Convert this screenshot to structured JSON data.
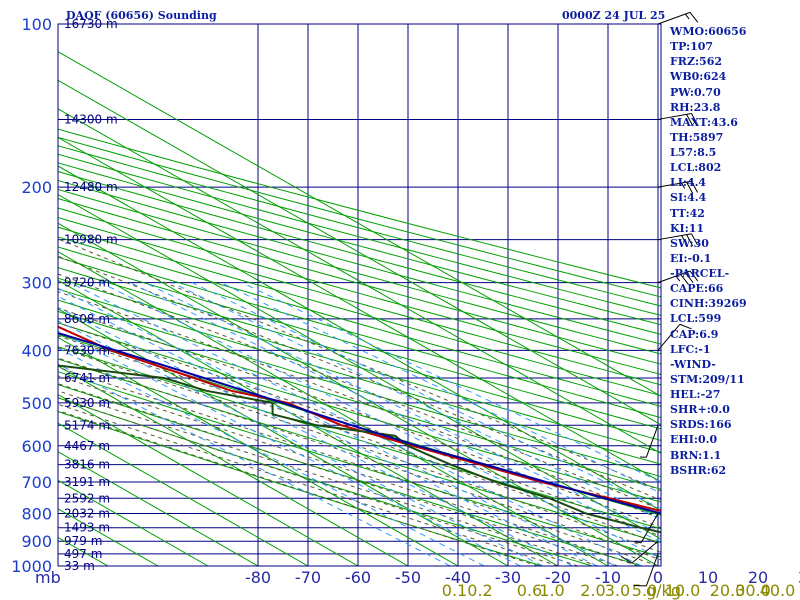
{
  "title": {
    "station": "DAOF (60656) Sounding",
    "time": "0000Z 24 JUL 25"
  },
  "chart_data": {
    "type": "line",
    "title": "DAOF (60656) Sounding",
    "subtitle": "0000Z 24 JUL 25",
    "xlabel": "",
    "ylabel": "mb",
    "ylabel_text": "mb",
    "xlim": [
      -80,
      0
    ],
    "ylim": [
      1000,
      100
    ],
    "pressure_ticks": [
      100,
      200,
      300,
      400,
      500,
      600,
      700,
      800,
      900,
      1000
    ],
    "pressure_tick_labels": [
      "100",
      "200",
      "300",
      "400",
      "500",
      "600",
      "700",
      "800",
      "900",
      "1000"
    ],
    "pressure_grid": [
      100,
      150,
      200,
      250,
      300,
      350,
      400,
      450,
      500,
      550,
      600,
      650,
      700,
      750,
      800,
      850,
      900,
      950,
      1000
    ],
    "temperature_ticks": [
      -80,
      -70,
      -60,
      -50,
      -40,
      -30,
      -20,
      -10,
      0,
      10,
      20,
      30,
      40
    ],
    "temperature_tick_labels": [
      "-80",
      "-70",
      "-60",
      "-50",
      "-40",
      "-30",
      "-20",
      "-10",
      "0",
      "10",
      "20",
      "30",
      "40"
    ],
    "mixing_ratio_labels": [
      {
        "label": "0.1",
        "t": -40.7
      },
      {
        "label": "0.2",
        "t": -35.6
      },
      {
        "label": "0.6",
        "t": -25.7
      },
      {
        "label": "1.0",
        "t": -21.2
      },
      {
        "label": "2.0",
        "t": -13.0
      },
      {
        "label": "3.0",
        "t": -8.1
      },
      {
        "label": "5.0",
        "t": -2.7
      },
      {
        "label": "10.0",
        "t": 4.9
      },
      {
        "label": "20.0",
        "t": 13.9
      },
      {
        "label": "30.0",
        "t": 19.0
      },
      {
        "label": "40.0",
        "t": 23.9
      }
    ],
    "mixing_ratio_unit": "g/kg",
    "height_labels": [
      {
        "p": 100,
        "label": "16730 m"
      },
      {
        "p": 150,
        "label": "14300 m"
      },
      {
        "p": 200,
        "label": "12480 m"
      },
      {
        "p": 250,
        "label": "10980 m"
      },
      {
        "p": 300,
        "label": "9720 m"
      },
      {
        "p": 350,
        "label": "8608 m"
      },
      {
        "p": 400,
        "label": "7630 m"
      },
      {
        "p": 450,
        "label": "6741 m"
      },
      {
        "p": 500,
        "label": "5930 m"
      },
      {
        "p": 550,
        "label": "5174 m"
      },
      {
        "p": 600,
        "label": "4467 m"
      },
      {
        "p": 650,
        "label": "3816 m"
      },
      {
        "p": 700,
        "label": "3191 m"
      },
      {
        "p": 750,
        "label": "2592 m"
      },
      {
        "p": 800,
        "label": "2032 m"
      },
      {
        "p": 850,
        "label": "1493 m"
      },
      {
        "p": 900,
        "label": "979 m"
      },
      {
        "p": 950,
        "label": "497 m"
      },
      {
        "p": 1000,
        "label": "33 m"
      }
    ],
    "series": [
      {
        "name": "temperature",
        "color": "#c00000",
        "points": [
          [
            -81,
            100
          ],
          [
            -82,
            115
          ],
          [
            -76,
            130
          ],
          [
            -73,
            150
          ],
          [
            -71,
            170
          ],
          [
            -61,
            200
          ],
          [
            -58,
            220
          ],
          [
            -52,
            250
          ],
          [
            -50,
            270
          ],
          [
            -42,
            300
          ],
          [
            -37,
            350
          ],
          [
            -34,
            400
          ],
          [
            -27,
            450
          ],
          [
            -24,
            475
          ],
          [
            -17,
            500
          ],
          [
            -14,
            550
          ],
          [
            -7,
            600
          ],
          [
            0,
            650
          ],
          [
            6,
            700
          ],
          [
            14,
            750
          ],
          [
            21,
            800
          ],
          [
            27,
            850
          ],
          [
            32,
            890
          ],
          [
            34,
            900
          ],
          [
            33,
            940
          ],
          [
            24,
            950
          ]
        ]
      },
      {
        "name": "dewpoint",
        "color": "#1a4a10",
        "points": [
          [
            -118,
            150
          ],
          [
            -116,
            200
          ],
          [
            -108,
            250
          ],
          [
            -83,
            300
          ],
          [
            -76,
            330
          ],
          [
            -73,
            350
          ],
          [
            -67,
            375
          ],
          [
            -58,
            400
          ],
          [
            -51,
            425
          ],
          [
            -33,
            450
          ],
          [
            -29,
            475
          ],
          [
            -20,
            500
          ],
          [
            -24,
            525
          ],
          [
            -19,
            550
          ],
          [
            -7,
            575
          ],
          [
            -8,
            600
          ],
          [
            -6,
            650
          ],
          [
            -3,
            700
          ],
          [
            2,
            750
          ],
          [
            4,
            800
          ],
          [
            10,
            850
          ],
          [
            17,
            900
          ],
          [
            7,
            940
          ],
          [
            16,
            950
          ],
          [
            21,
            955
          ]
        ]
      },
      {
        "name": "parcel",
        "color": "#0000a0",
        "points": [
          [
            -103,
            150
          ],
          [
            -98,
            170
          ],
          [
            -88,
            200
          ],
          [
            -79,
            220
          ],
          [
            -70,
            250
          ],
          [
            -64,
            270
          ],
          [
            -55,
            300
          ],
          [
            -43,
            350
          ],
          [
            -33,
            400
          ],
          [
            -25,
            450
          ],
          [
            -18,
            500
          ],
          [
            -12,
            550
          ],
          [
            -6,
            600
          ],
          [
            1,
            650
          ],
          [
            7,
            700
          ],
          [
            13,
            750
          ],
          [
            19,
            800
          ],
          [
            25,
            850
          ],
          [
            30,
            900
          ],
          [
            36,
            950
          ]
        ]
      }
    ],
    "wind_barbs": [
      {
        "p": 100,
        "dir": 70,
        "spd": 15
      },
      {
        "p": 150,
        "dir": 80,
        "spd": 20
      },
      {
        "p": 200,
        "dir": 80,
        "spd": 25
      },
      {
        "p": 250,
        "dir": 80,
        "spd": 30
      },
      {
        "p": 300,
        "dir": 70,
        "spd": 35
      },
      {
        "p": 400,
        "dir": 40,
        "spd": 10
      },
      {
        "p": 550,
        "dir": 200,
        "spd": 5
      },
      {
        "p": 800,
        "dir": 210,
        "spd": 5
      },
      {
        "p": 900,
        "dir": 230,
        "spd": 10
      },
      {
        "p": 950,
        "dir": 200,
        "spd": 10
      }
    ],
    "colors": {
      "frame": "#000080",
      "grid": "#000080",
      "isotherm": "#00a000",
      "dry_adiabat": "#00a000",
      "moist_adiabat": "#5a5a30",
      "mixing_ratio": "#3399ff",
      "left_labels": "#1a3fd0",
      "bottom_labels": "#2929a6",
      "mixing_labels": "#8a8a00",
      "height_labels": "#000080"
    }
  },
  "indices": [
    "WMO:60656",
    "TP:107",
    "FRZ:562",
    "WB0:624",
    "PW:0.70",
    "RH:23.8",
    "MAXT:43.6",
    "TH:5897",
    "L57:8.5",
    "LCL:802",
    "LI:4.4",
    "SI:4.4",
    "TT:42",
    "KI:11",
    "SW:30",
    "EI:-0.1",
    "-PARCEL-",
    "CAPE:66",
    "CINH:39269",
    "LCL:599",
    "CAP:6.9",
    "LFC:-1",
    "-WIND-",
    "STM:209/11",
    "HEL:-27",
    "SHR+:0.0",
    "SRDS:166",
    "EHI:0.0",
    "BRN:1.1",
    "BSHR:62"
  ]
}
